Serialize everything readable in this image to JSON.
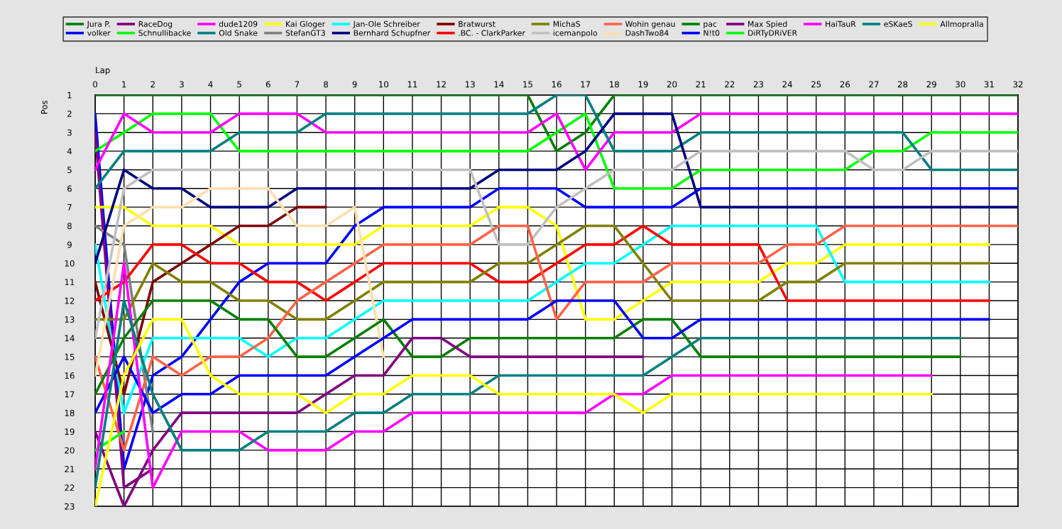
{
  "chart_data": {
    "type": "line",
    "xlabel": "Lap",
    "ylabel": "Pos",
    "x": [
      0,
      1,
      2,
      3,
      4,
      5,
      6,
      7,
      8,
      9,
      10,
      11,
      12,
      13,
      14,
      15,
      16,
      17,
      18,
      19,
      20,
      21,
      22,
      23,
      24,
      25,
      26,
      27,
      28,
      29,
      30,
      31,
      32
    ],
    "xlim": [
      0,
      32
    ],
    "xticks": [
      0,
      1,
      2,
      3,
      4,
      5,
      6,
      7,
      8,
      9,
      10,
      11,
      12,
      13,
      14,
      15,
      16,
      17,
      18,
      19,
      20,
      21,
      22,
      23,
      24,
      25,
      26,
      27,
      28,
      29,
      30,
      31,
      32
    ],
    "ylim": [
      23,
      1
    ],
    "yticks": [
      1,
      2,
      3,
      4,
      5,
      6,
      7,
      8,
      9,
      10,
      11,
      12,
      13,
      14,
      15,
      16,
      17,
      18,
      19,
      20,
      21,
      22,
      23
    ],
    "grid": true,
    "legend": "top",
    "marker": "none",
    "line_style": "solid",
    "series": [
      {
        "name": "Jura P.",
        "color": "#008000",
        "values": [
          1,
          1,
          1,
          1,
          1,
          1,
          1,
          1,
          1,
          1,
          1,
          1,
          1,
          1,
          1,
          1,
          4,
          3,
          1,
          1,
          1,
          1,
          1,
          1,
          1,
          1,
          1,
          1,
          1,
          1,
          1,
          1,
          1
        ]
      },
      {
        "name": "volker",
        "color": "#0000ff",
        "values": [
          2,
          21,
          16,
          15,
          13,
          11,
          10,
          10,
          10,
          8,
          7,
          7,
          7,
          7,
          6,
          6,
          6,
          7,
          7,
          7,
          7,
          6,
          6,
          6,
          6,
          6,
          6,
          6,
          6,
          6,
          6,
          6,
          6
        ]
      },
      {
        "name": "RaceDog",
        "color": "#800080",
        "values": [
          3,
          22,
          21,
          null,
          null,
          null,
          null,
          null,
          null,
          null,
          null,
          null,
          null,
          null,
          null,
          null,
          null,
          null,
          null,
          null,
          null,
          null,
          null,
          null,
          null,
          null,
          null,
          null,
          null,
          null,
          null,
          null,
          null
        ]
      },
      {
        "name": "Schnullibacke",
        "color": "#00ff00",
        "values": [
          4,
          3,
          2,
          2,
          2,
          4,
          4,
          4,
          4,
          4,
          4,
          4,
          4,
          4,
          4,
          4,
          3,
          2,
          6,
          6,
          6,
          5,
          5,
          5,
          5,
          5,
          5,
          4,
          4,
          3,
          3,
          3,
          3
        ]
      },
      {
        "name": "dude1209",
        "color": "#ff00ff",
        "values": [
          5,
          2,
          3,
          3,
          3,
          2,
          2,
          2,
          3,
          3,
          3,
          3,
          3,
          3,
          3,
          3,
          2,
          5,
          3,
          3,
          3,
          2,
          2,
          2,
          2,
          2,
          2,
          2,
          2,
          2,
          2,
          2,
          2
        ]
      },
      {
        "name": "Old Snake",
        "color": "#008080",
        "values": [
          6,
          4,
          4,
          4,
          4,
          3,
          3,
          3,
          2,
          2,
          2,
          2,
          2,
          2,
          2,
          2,
          1,
          1,
          4,
          4,
          4,
          3,
          3,
          3,
          3,
          3,
          3,
          3,
          3,
          5,
          5,
          5,
          5
        ]
      },
      {
        "name": "Kai Gloger",
        "color": "#ffff00",
        "values": [
          7,
          7,
          8,
          8,
          8,
          9,
          9,
          9,
          9,
          9,
          8,
          8,
          8,
          8,
          7,
          7,
          8,
          13,
          13,
          12,
          11,
          11,
          11,
          11,
          10,
          10,
          9,
          9,
          9,
          9,
          9,
          9,
          null
        ]
      },
      {
        "name": "StefanGT3",
        "color": "#808080",
        "values": [
          8,
          9,
          19,
          null,
          null,
          null,
          null,
          null,
          null,
          null,
          null,
          null,
          null,
          null,
          null,
          null,
          null,
          null,
          null,
          null,
          null,
          null,
          null,
          null,
          null,
          null,
          null,
          null,
          null,
          null,
          null,
          null,
          null
        ]
      },
      {
        "name": "Jan-Ole Schreiber",
        "color": "#00ffff",
        "values": [
          9,
          18,
          14,
          14,
          14,
          14,
          15,
          14,
          14,
          13,
          12,
          12,
          12,
          12,
          12,
          12,
          11,
          10,
          10,
          9,
          8,
          8,
          8,
          8,
          8,
          8,
          11,
          11,
          11,
          11,
          11,
          11,
          null
        ]
      },
      {
        "name": "Bernhard Schupfner",
        "color": "#000080",
        "values": [
          10,
          5,
          6,
          6,
          7,
          7,
          7,
          6,
          6,
          6,
          6,
          6,
          6,
          6,
          5,
          5,
          5,
          4,
          2,
          2,
          2,
          7,
          7,
          7,
          7,
          7,
          7,
          7,
          7,
          7,
          7,
          7,
          7
        ]
      },
      {
        "name": "Bratwurst",
        "color": "#800000",
        "values": [
          11,
          17,
          11,
          10,
          9,
          8,
          8,
          7,
          7,
          null,
          null,
          null,
          null,
          null,
          null,
          null,
          null,
          null,
          null,
          null,
          null,
          null,
          null,
          null,
          null,
          null,
          null,
          null,
          null,
          null,
          null,
          null,
          null
        ]
      },
      {
        "name": ".BC. - ClarkParker",
        "color": "#ff0000",
        "values": [
          12,
          11,
          9,
          9,
          10,
          10,
          11,
          11,
          12,
          11,
          10,
          10,
          10,
          10,
          11,
          11,
          10,
          9,
          9,
          8,
          9,
          9,
          9,
          9,
          12,
          12,
          12,
          12,
          12,
          12,
          12,
          12,
          null
        ]
      },
      {
        "name": "MichaS",
        "color": "#808000",
        "values": [
          13,
          13,
          10,
          11,
          11,
          12,
          12,
          13,
          13,
          12,
          11,
          11,
          11,
          11,
          10,
          10,
          9,
          8,
          8,
          10,
          12,
          12,
          12,
          12,
          11,
          11,
          10,
          10,
          10,
          10,
          10,
          10,
          null
        ]
      },
      {
        "name": "icemanpolo",
        "color": "#c0c0c0",
        "values": [
          14,
          6,
          5,
          5,
          5,
          5,
          5,
          5,
          5,
          5,
          5,
          5,
          5,
          5,
          9,
          9,
          7,
          6,
          5,
          5,
          5,
          4,
          4,
          4,
          4,
          4,
          4,
          5,
          5,
          4,
          4,
          4,
          4
        ]
      },
      {
        "name": "Wohin genau",
        "color": "#ff6347",
        "values": [
          15,
          20,
          15,
          16,
          15,
          15,
          14,
          12,
          11,
          10,
          9,
          9,
          9,
          9,
          8,
          8,
          13,
          11,
          11,
          11,
          10,
          10,
          10,
          10,
          9,
          9,
          8,
          8,
          8,
          8,
          8,
          8,
          8
        ]
      },
      {
        "name": "DashTwo84",
        "color": "#ffdead",
        "values": [
          16,
          8,
          7,
          7,
          6,
          6,
          6,
          8,
          8,
          7,
          15,
          null,
          null,
          null,
          null,
          null,
          null,
          null,
          null,
          null,
          null,
          null,
          null,
          null,
          null,
          null,
          null,
          null,
          null,
          null,
          null,
          null,
          null
        ]
      },
      {
        "name": "pac",
        "color": "#008000",
        "values": [
          17,
          14,
          12,
          12,
          12,
          13,
          13,
          15,
          15,
          14,
          13,
          15,
          15,
          14,
          14,
          14,
          14,
          14,
          14,
          13,
          13,
          15,
          15,
          15,
          15,
          15,
          15,
          15,
          15,
          15,
          15,
          null,
          null
        ]
      },
      {
        "name": "N!t0",
        "color": "#0000ff",
        "values": [
          18,
          15,
          18,
          17,
          17,
          16,
          16,
          16,
          16,
          15,
          14,
          13,
          13,
          13,
          13,
          13,
          12,
          12,
          12,
          14,
          14,
          13,
          13,
          13,
          13,
          13,
          13,
          13,
          13,
          13,
          13,
          13,
          null
        ]
      },
      {
        "name": "Max Spied",
        "color": "#800080",
        "values": [
          19,
          23,
          20,
          18,
          18,
          18,
          18,
          18,
          17,
          16,
          16,
          14,
          14,
          15,
          15,
          15,
          15,
          15,
          15,
          15,
          null,
          null,
          null,
          null,
          null,
          null,
          null,
          null,
          null,
          null,
          null,
          null,
          null
        ]
      },
      {
        "name": "DiRTyDRiVER",
        "color": "#00ff00",
        "values": [
          20,
          19,
          null,
          null,
          null,
          null,
          null,
          null,
          null,
          null,
          null,
          null,
          null,
          null,
          null,
          null,
          null,
          null,
          null,
          null,
          null,
          null,
          null,
          null,
          null,
          null,
          null,
          null,
          null,
          null,
          null,
          null,
          null
        ]
      },
      {
        "name": "HaiTauR",
        "color": "#ff00ff",
        "values": [
          21,
          10,
          22,
          19,
          19,
          19,
          20,
          20,
          20,
          19,
          19,
          18,
          18,
          18,
          18,
          18,
          18,
          18,
          17,
          17,
          16,
          16,
          16,
          16,
          16,
          16,
          16,
          16,
          16,
          16,
          null,
          null,
          null
        ]
      },
      {
        "name": "eSKaeS",
        "color": "#008080",
        "values": [
          22,
          12,
          17,
          20,
          20,
          20,
          19,
          19,
          19,
          18,
          18,
          17,
          17,
          17,
          16,
          16,
          16,
          16,
          16,
          16,
          15,
          14,
          14,
          14,
          14,
          14,
          14,
          14,
          14,
          14,
          14,
          null,
          null
        ]
      },
      {
        "name": "Allmopralla",
        "color": "#ffff00",
        "values": [
          23,
          16,
          13,
          13,
          16,
          17,
          17,
          17,
          18,
          17,
          17,
          16,
          16,
          16,
          17,
          17,
          17,
          17,
          17,
          18,
          17,
          17,
          17,
          17,
          17,
          17,
          17,
          17,
          17,
          17,
          null,
          null,
          null
        ]
      }
    ]
  }
}
